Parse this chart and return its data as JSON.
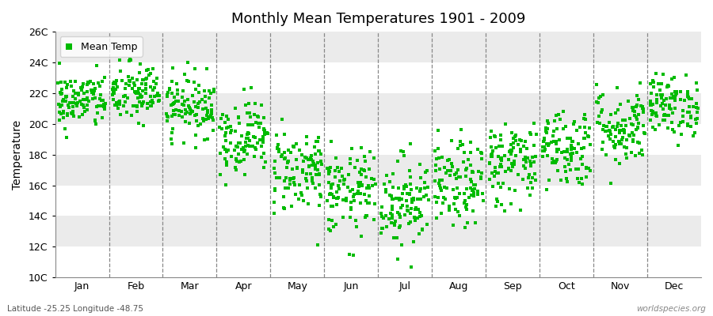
{
  "title": "Monthly Mean Temperatures 1901 - 2009",
  "ylabel": "Temperature",
  "xlabel_labels": [
    "Jan",
    "Feb",
    "Mar",
    "Apr",
    "May",
    "Jun",
    "Jul",
    "Aug",
    "Sep",
    "Oct",
    "Nov",
    "Dec"
  ],
  "legend_label": "Mean Temp",
  "dot_color": "#00BB00",
  "dot_size": 5,
  "ylim": [
    10,
    26
  ],
  "ytick_labels": [
    "10C",
    "12C",
    "14C",
    "16C",
    "18C",
    "20C",
    "22C",
    "24C",
    "26C"
  ],
  "ytick_values": [
    10,
    12,
    14,
    16,
    18,
    20,
    22,
    24,
    26
  ],
  "background_color": "#FFFFFF",
  "band_colors": [
    "#FFFFFF",
    "#EBEBEB"
  ],
  "footer_left": "Latitude -25.25 Longitude -48.75",
  "footer_right": "worldspecies.org",
  "monthly_means": [
    21.5,
    22.0,
    21.2,
    19.2,
    17.0,
    15.5,
    15.0,
    16.0,
    17.5,
    18.5,
    19.8,
    21.2
  ],
  "monthly_stds": [
    0.9,
    1.0,
    1.0,
    1.2,
    1.4,
    1.4,
    1.5,
    1.4,
    1.4,
    1.3,
    1.3,
    1.0
  ],
  "n_years": 109,
  "seed": 42
}
